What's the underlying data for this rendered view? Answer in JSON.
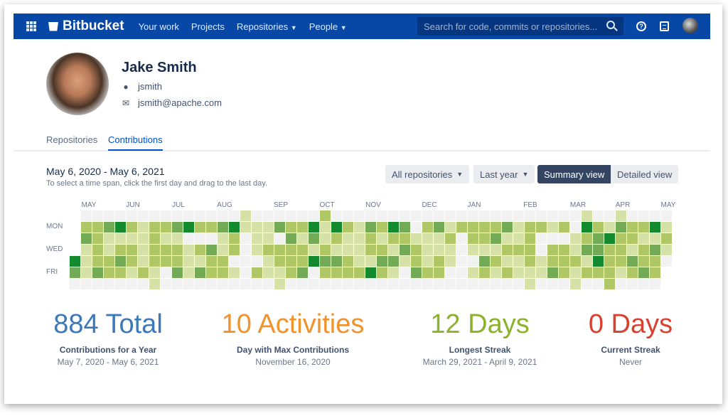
{
  "nav": {
    "brand": "Bitbucket",
    "links": [
      {
        "label": "Your work"
      },
      {
        "label": "Projects"
      },
      {
        "label": "Repositories",
        "dropdown": true
      },
      {
        "label": "People",
        "dropdown": true
      }
    ],
    "search_placeholder": "Search for code, commits or repositories...",
    "help_glyph": "?"
  },
  "profile": {
    "name": "Jake Smith",
    "username": "jsmith",
    "email": "jsmith@apache.com"
  },
  "tabs": [
    {
      "label": "Repositories",
      "active": false
    },
    {
      "label": "Contributions",
      "active": true
    }
  ],
  "contrib": {
    "range": "May 6, 2020 - May 6, 2021",
    "hint": "To select a time span, click the first day and drag to the last day.",
    "repo_filter": "All repositories",
    "period_filter": "Last year",
    "summary_view": "Summary view",
    "detailed_view": "Detailed view",
    "active_view": "Summary view"
  },
  "heatmap": {
    "months": [
      "MAY",
      "JUN",
      "JUL",
      "AUG",
      "SEP",
      "OCT",
      "NOV",
      "DEC",
      "JAN",
      "FEB",
      "MAR",
      "APR",
      "MAY"
    ],
    "days": [
      "MON",
      "WED",
      "FRI"
    ],
    "colors": [
      "#f2f2f2",
      "#d5e1a6",
      "#afc764",
      "#72aa55",
      "#138a2e"
    ],
    "levels": [
      [
        -1,
        -1,
        -1,
        -1,
        4,
        3,
        0
      ],
      [
        0,
        2,
        3,
        1,
        1,
        1,
        0
      ],
      [
        0,
        2,
        2,
        2,
        2,
        3,
        0
      ],
      [
        0,
        3,
        1,
        1,
        2,
        2,
        0
      ],
      [
        0,
        4,
        1,
        2,
        3,
        2,
        0
      ],
      [
        0,
        2,
        1,
        2,
        2,
        1,
        0
      ],
      [
        0,
        1,
        1,
        1,
        1,
        2,
        0
      ],
      [
        0,
        2,
        2,
        2,
        2,
        1,
        1
      ],
      [
        0,
        2,
        1,
        2,
        2,
        0,
        0
      ],
      [
        0,
        3,
        1,
        2,
        2,
        3,
        0
      ],
      [
        0,
        4,
        0,
        1,
        1,
        1,
        0
      ],
      [
        0,
        2,
        0,
        2,
        1,
        3,
        0
      ],
      [
        0,
        2,
        0,
        3,
        2,
        2,
        0
      ],
      [
        0,
        3,
        1,
        1,
        2,
        2,
        0
      ],
      [
        0,
        4,
        2,
        2,
        0,
        1,
        0
      ],
      [
        1,
        1,
        0,
        0,
        0,
        0,
        0
      ],
      [
        0,
        1,
        1,
        1,
        0,
        2,
        0
      ],
      [
        0,
        1,
        1,
        2,
        1,
        1,
        0
      ],
      [
        0,
        3,
        0,
        2,
        2,
        1,
        1
      ],
      [
        0,
        2,
        3,
        2,
        2,
        2,
        0
      ],
      [
        0,
        2,
        1,
        2,
        2,
        3,
        0
      ],
      [
        0,
        4,
        3,
        1,
        4,
        0,
        0
      ],
      [
        2,
        1,
        1,
        2,
        3,
        2,
        0
      ],
      [
        0,
        4,
        2,
        1,
        3,
        2,
        0
      ],
      [
        0,
        2,
        1,
        1,
        2,
        2,
        0
      ],
      [
        0,
        1,
        1,
        1,
        1,
        2,
        0
      ],
      [
        0,
        3,
        2,
        2,
        1,
        4,
        0
      ],
      [
        0,
        2,
        1,
        2,
        3,
        2,
        0
      ],
      [
        0,
        4,
        2,
        1,
        3,
        1,
        0
      ],
      [
        0,
        3,
        2,
        3,
        1,
        0,
        0
      ],
      [
        0,
        0,
        1,
        2,
        2,
        3,
        0
      ],
      [
        0,
        2,
        1,
        1,
        1,
        2,
        0
      ],
      [
        0,
        3,
        1,
        1,
        2,
        2,
        0
      ],
      [
        0,
        1,
        2,
        1,
        1,
        0,
        0
      ],
      [
        0,
        2,
        0,
        0,
        0,
        0,
        0
      ],
      [
        0,
        2,
        2,
        1,
        0,
        1,
        0
      ],
      [
        0,
        2,
        2,
        1,
        3,
        2,
        0
      ],
      [
        0,
        2,
        3,
        1,
        2,
        1,
        0
      ],
      [
        0,
        3,
        1,
        2,
        1,
        2,
        0
      ],
      [
        0,
        1,
        1,
        2,
        1,
        1,
        0
      ],
      [
        0,
        2,
        2,
        2,
        2,
        1,
        1
      ],
      [
        0,
        2,
        0,
        0,
        1,
        1,
        0
      ],
      [
        0,
        1,
        0,
        2,
        2,
        3,
        0
      ],
      [
        0,
        2,
        0,
        2,
        2,
        2,
        0
      ],
      [
        0,
        0,
        1,
        1,
        2,
        1,
        1
      ],
      [
        1,
        4,
        2,
        3,
        1,
        2,
        0
      ],
      [
        0,
        2,
        3,
        3,
        4,
        2,
        0
      ],
      [
        0,
        1,
        4,
        2,
        2,
        2,
        2
      ],
      [
        1,
        3,
        2,
        2,
        2,
        1,
        0
      ],
      [
        0,
        2,
        2,
        1,
        3,
        2,
        0
      ],
      [
        0,
        2,
        1,
        2,
        2,
        3,
        0
      ],
      [
        0,
        4,
        1,
        3,
        2,
        2,
        0
      ],
      [
        0,
        1,
        2,
        1,
        0,
        -1,
        -1
      ]
    ]
  },
  "stats": [
    {
      "value": "884 Total",
      "label": "Contributions for a Year",
      "sub": "May 7, 2020 - May 6, 2021",
      "color": "#3d78b8"
    },
    {
      "value": "10 Activities",
      "label": "Day with Max Contributions",
      "sub": "November 16, 2020",
      "color": "#f0922e"
    },
    {
      "value": "12 Days",
      "label": "Longest Streak",
      "sub": "March 29, 2021 - April 9, 2021",
      "color": "#8db22e"
    },
    {
      "value": "0 Days",
      "label": "Current Streak",
      "sub": "Never",
      "color": "#d8412f"
    }
  ]
}
